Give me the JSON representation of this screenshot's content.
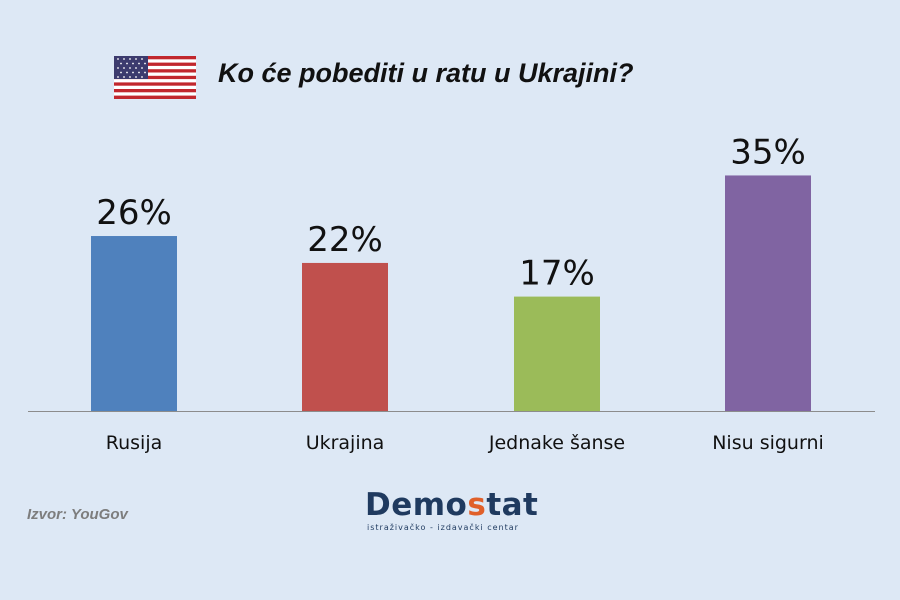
{
  "header": {
    "title": "Ko će pobediti u ratu u Ukrajini?",
    "flag_icon": "us-flag-icon"
  },
  "chart_data": {
    "type": "bar",
    "title": "Ko će pobediti u ratu u Ukrajini?",
    "categories": [
      "Rusija",
      "Ukrajina",
      "Jednake šanse",
      "Nisu sigurni"
    ],
    "values": [
      26,
      22,
      17,
      35
    ],
    "value_labels": [
      "26%",
      "22%",
      "17%",
      "35%"
    ],
    "colors": [
      "#4f81bd",
      "#c0504d",
      "#9bbb59",
      "#8064a2"
    ],
    "ylim": [
      0,
      40
    ],
    "xlabel": "",
    "ylabel": "",
    "grid": false,
    "legend": false
  },
  "footer": {
    "source": "Izvor: YouGov",
    "logo_text_main": "Demo",
    "logo_text_accent": "s",
    "logo_text_end": "tat",
    "logo_subtitle": "istraživačko - izdavački  centar"
  }
}
